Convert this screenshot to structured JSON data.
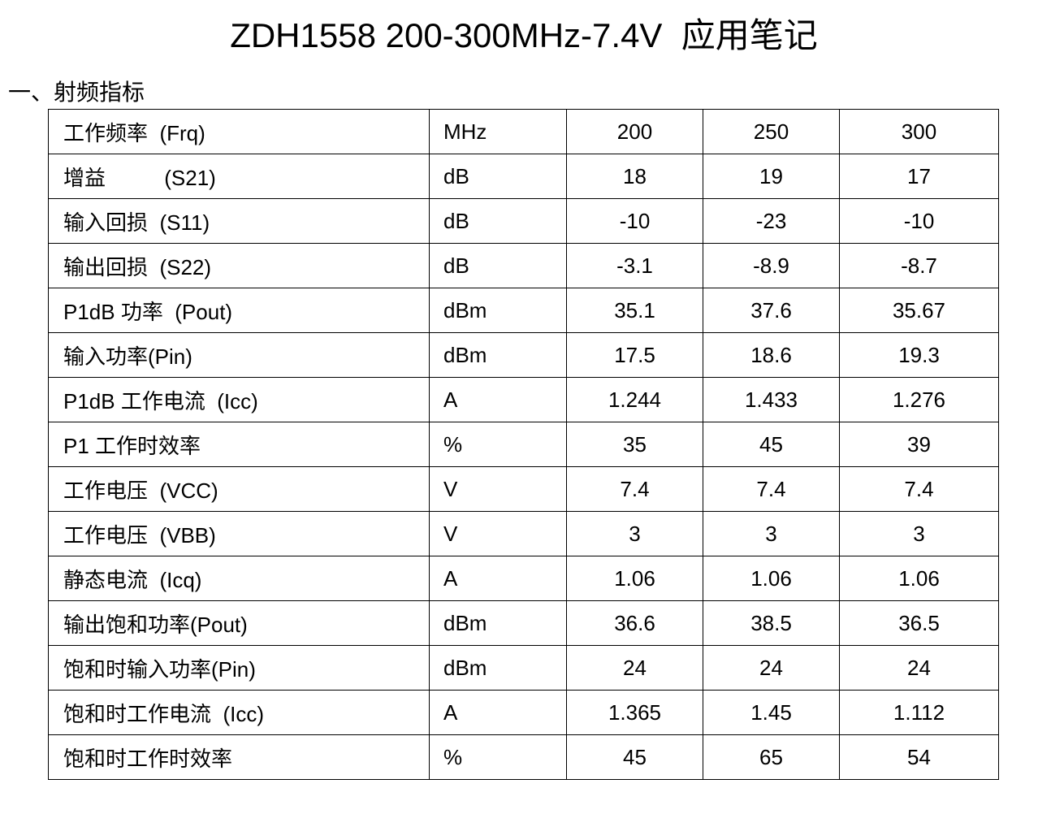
{
  "title": "ZDH1558 200-300MHz-7.4V  应用笔记",
  "section_heading": "一、射频指标",
  "table": {
    "rows": [
      {
        "name": "工作频率  (Frq)",
        "unit": "MHz",
        "values": [
          "200",
          "250",
          "300"
        ]
      },
      {
        "name": "增益          (S21)",
        "unit": "dB",
        "values": [
          "18",
          "19",
          "17"
        ]
      },
      {
        "name": "输入回损  (S11)",
        "unit": "dB",
        "values": [
          "-10",
          "-23",
          "-10"
        ]
      },
      {
        "name": "输出回损  (S22)",
        "unit": "dB",
        "values": [
          "-3.1",
          "-8.9",
          "-8.7"
        ]
      },
      {
        "name": "P1dB 功率  (Pout)",
        "unit": "dBm",
        "values": [
          "35.1",
          "37.6",
          "35.67"
        ]
      },
      {
        "name": "输入功率(Pin)",
        "unit": "dBm",
        "values": [
          "17.5",
          "18.6",
          "19.3"
        ]
      },
      {
        "name": "P1dB 工作电流  (Icc)",
        "unit": "A",
        "values": [
          "1.244",
          "1.433",
          "1.276"
        ]
      },
      {
        "name": "P1 工作时效率",
        "unit": "%",
        "values": [
          "35",
          "45",
          "39"
        ]
      },
      {
        "name": "工作电压  (VCC)",
        "unit": "V",
        "values": [
          "7.4",
          "7.4",
          "7.4"
        ]
      },
      {
        "name": "工作电压  (VBB)",
        "unit": "V",
        "values": [
          "3",
          "3",
          "3"
        ]
      },
      {
        "name": "静态电流  (Icq)",
        "unit": "A",
        "values": [
          "1.06",
          "1.06",
          "1.06"
        ]
      },
      {
        "name": "输出饱和功率(Pout)",
        "unit": "dBm",
        "values": [
          "36.6",
          "38.5",
          "36.5"
        ]
      },
      {
        "name": "饱和时输入功率(Pin)",
        "unit": "dBm",
        "values": [
          "24",
          "24",
          "24"
        ]
      },
      {
        "name": "饱和时工作电流  (Icc)",
        "unit": "A",
        "values": [
          "1.365",
          "1.45",
          "1.112"
        ]
      },
      {
        "name": "饱和时工作时效率",
        "unit": "%",
        "values": [
          "45",
          "65",
          "54"
        ]
      }
    ]
  }
}
